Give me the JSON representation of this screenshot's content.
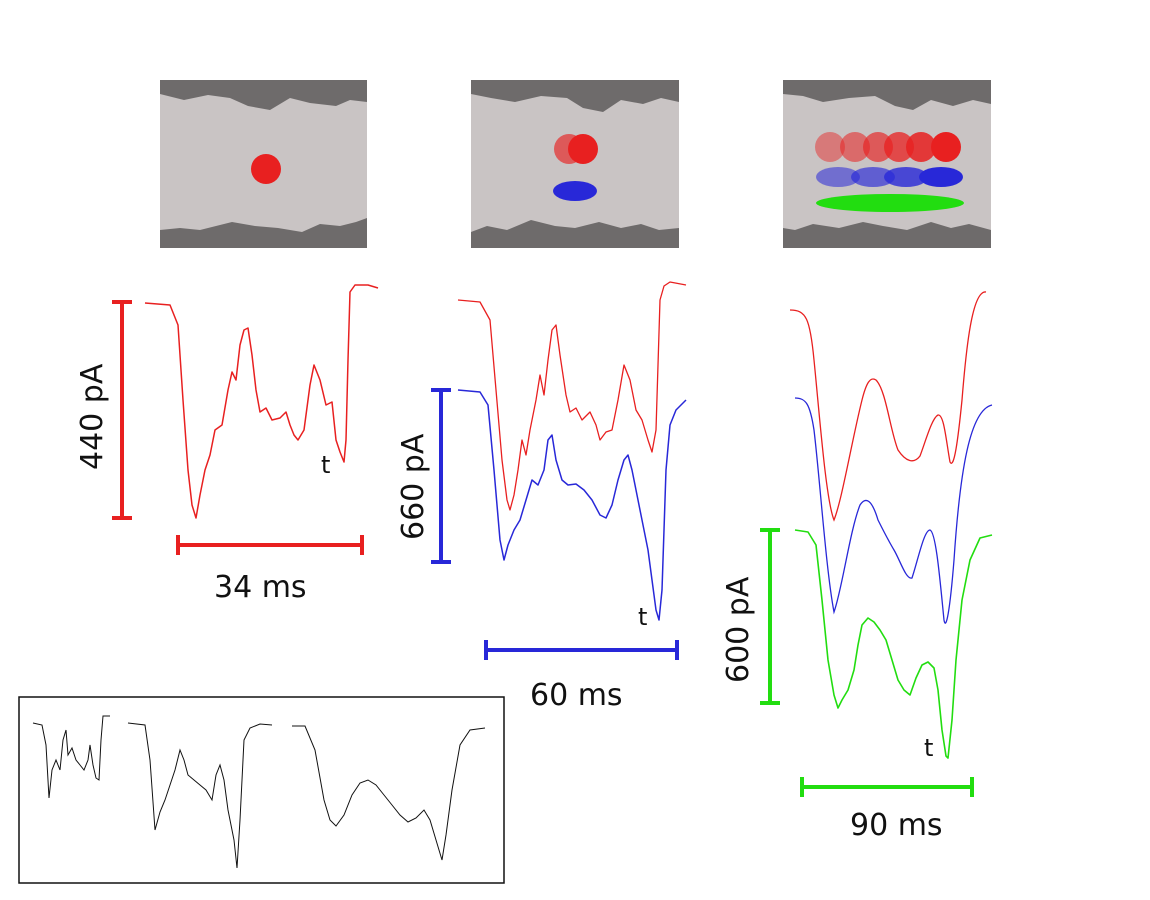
{
  "colors": {
    "red": "#e82020",
    "blue": "#2828d8",
    "green": "#22dd10",
    "wall": "#6e6b6b",
    "channel": "#c9c4c4",
    "inset_trace": "#111111"
  },
  "panels": [
    {
      "scale_bar_current": "440 pA",
      "scale_bar_time": "34 ms",
      "marker": "t",
      "trace_colors": [
        "red"
      ],
      "channel_contents": "one red particle"
    },
    {
      "scale_bar_current": "660 pA",
      "scale_bar_time": "60 ms",
      "marker": "t",
      "trace_colors": [
        "red",
        "blue"
      ],
      "channel_contents": "red particle pair, blue ellipse"
    },
    {
      "scale_bar_current": "600 pA",
      "scale_bar_time": "90 ms",
      "marker": "t",
      "trace_colors": [
        "red",
        "blue",
        "green"
      ],
      "channel_contents": "row of red particles, row of blue ellipses, green ellipse"
    }
  ],
  "inset": {
    "trace_count": 3
  }
}
